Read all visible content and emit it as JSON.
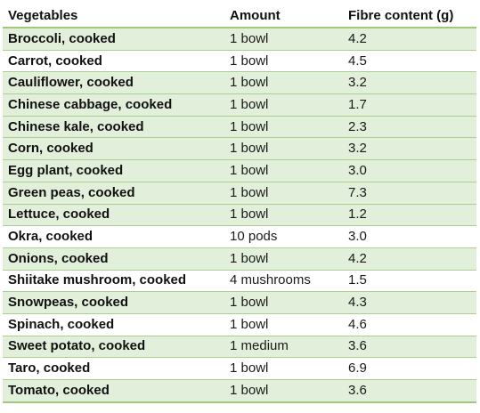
{
  "table": {
    "headers": [
      "Vegetables",
      "Amount",
      "Fibre content (g)"
    ],
    "rows": [
      [
        "Broccoli, cooked",
        "1 bowl",
        "4.2"
      ],
      [
        "Carrot, cooked",
        "1 bowl",
        "4.5"
      ],
      [
        "Cauliflower, cooked",
        "1 bowl",
        "3.2"
      ],
      [
        "Chinese cabbage, cooked",
        "1 bowl",
        "1.7"
      ],
      [
        "Chinese kale, cooked",
        "1 bowl",
        "2.3"
      ],
      [
        "Corn, cooked",
        "1 bowl",
        "3.2"
      ],
      [
        "Egg plant, cooked",
        "1 bowl",
        "3.0"
      ],
      [
        "Green peas, cooked",
        "1 bowl",
        "7.3"
      ],
      [
        "Lettuce, cooked",
        "1 bowl",
        "1.2"
      ],
      [
        "Okra, cooked",
        "10 pods",
        "3.0"
      ],
      [
        "Onions, cooked",
        "1 bowl",
        "4.2"
      ],
      [
        "Shiitake mushroom, cooked",
        "4 mushrooms",
        "1.5"
      ],
      [
        "Snowpeas, cooked",
        "1 bowl",
        "4.3"
      ],
      [
        "Spinach, cooked",
        "1 bowl",
        "4.6"
      ],
      [
        "Sweet potato, cooked",
        "1 medium",
        "3.6"
      ],
      [
        "Taro, cooked",
        "1 bowl",
        "6.9"
      ],
      [
        "Tomato, cooked",
        "1 bowl",
        "3.6"
      ]
    ]
  },
  "colors": {
    "row_shade": "#e2efda",
    "border": "#a9d08e"
  }
}
